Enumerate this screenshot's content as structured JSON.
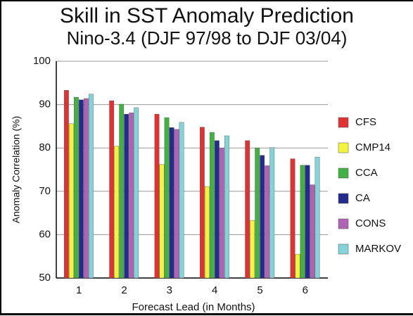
{
  "chart_data": {
    "type": "bar",
    "title": "Skill in SST Anomaly Prediction",
    "subtitle": "Nino-3.4 (DJF 97/98 to DJF 03/04)",
    "x_label": "Forecast Lead (in Months)",
    "y_label": "Anomaly Correlation (%)",
    "categories": [
      "1",
      "2",
      "3",
      "4",
      "5",
      "6"
    ],
    "series": [
      {
        "name": "CFS",
        "color": "#e03232",
        "values": [
          93.3,
          90.9,
          87.8,
          84.8,
          81.7,
          77.5
        ]
      },
      {
        "name": "CMP14",
        "color": "#f4f43c",
        "values": [
          85.6,
          80.4,
          76.2,
          71.1,
          63.3,
          55.5
        ]
      },
      {
        "name": "CCA",
        "color": "#42b042",
        "values": [
          91.7,
          90.1,
          87.0,
          83.6,
          80.0,
          76.0
        ]
      },
      {
        "name": "CA",
        "color": "#232b8e",
        "values": [
          91.1,
          87.8,
          84.7,
          81.7,
          78.3,
          76.0
        ]
      },
      {
        "name": "CONS",
        "color": "#b262b4",
        "values": [
          91.4,
          88.1,
          84.3,
          80.0,
          75.9,
          71.5
        ]
      },
      {
        "name": "MARKOV",
        "color": "#84d2da",
        "values": [
          92.4,
          89.3,
          85.9,
          82.8,
          80.1,
          77.9
        ]
      }
    ],
    "ylim": [
      50,
      100
    ],
    "yticks": [
      50,
      60,
      70,
      80,
      90,
      100
    ],
    "grid": true,
    "legend": "right"
  }
}
